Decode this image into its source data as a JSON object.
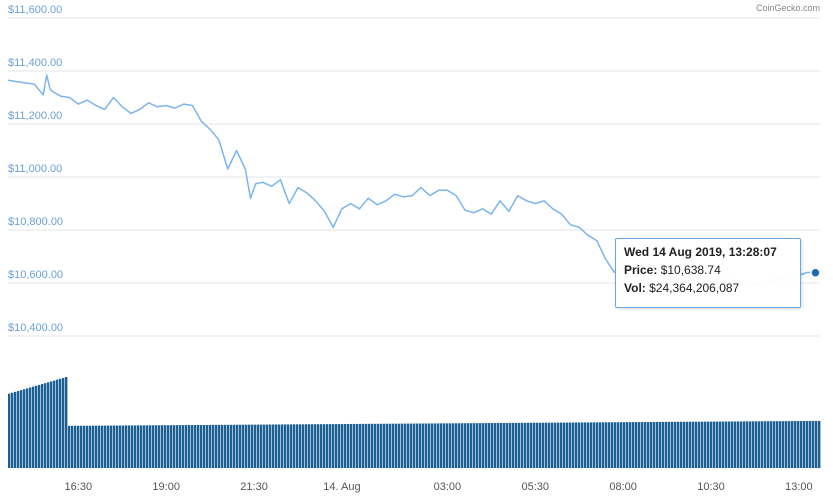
{
  "credit": "CoinGecko.com",
  "tooltip": {
    "date": "Wed 14 Aug 2019, 13:28:07",
    "price_label": "Price:",
    "price_value": "$10,638.74",
    "vol_label": "Vol:",
    "vol_value": "$24,364,206,087"
  },
  "colors": {
    "line": "#7cb5ec",
    "bar": "#1c5f93",
    "marker": "#1a6bb0",
    "axis_label": "#6b9fd6",
    "grid": "#e6e6e6"
  },
  "chart_data": [
    {
      "type": "line",
      "title": "",
      "ylabel": "",
      "ylim": [
        10400,
        11600
      ],
      "y_ticks": [
        "$10,400.00",
        "$10,600.00",
        "$10,800.00",
        "$11,000.00",
        "$11,200.00",
        "$11,400.00",
        "$11,600.00"
      ],
      "y_tick_values": [
        10400,
        10600,
        10800,
        11000,
        11200,
        11400,
        11600
      ],
      "x_ticks": [
        "16:30",
        "19:00",
        "21:30",
        "14. Aug",
        "03:00",
        "05:30",
        "08:00",
        "10:30",
        "13:00"
      ],
      "x_range_hours": [
        14.5,
        37.6
      ],
      "x_tick_hours": [
        16.5,
        19.0,
        21.5,
        24.0,
        27.0,
        29.5,
        32.0,
        34.5,
        37.0
      ],
      "series": [
        {
          "x_hours": [
            14.5,
            14.75,
            15.0,
            15.25,
            15.5,
            15.6,
            15.7,
            15.8,
            16.0,
            16.25,
            16.5,
            16.75,
            17.0,
            17.25,
            17.5,
            17.75,
            18.0,
            18.25,
            18.5,
            18.75,
            19.0,
            19.25,
            19.5,
            19.75,
            20.0,
            20.25,
            20.5,
            20.75,
            21.0,
            21.25,
            21.4,
            21.55,
            21.75,
            22.0,
            22.25,
            22.5,
            22.75,
            23.0,
            23.25,
            23.5,
            23.75,
            24.0,
            24.25,
            24.5,
            24.75,
            25.0,
            25.25,
            25.5,
            25.75,
            26.0,
            26.25,
            26.5,
            26.75,
            27.0,
            27.25,
            27.5,
            27.75,
            28.0,
            28.25,
            28.5,
            28.75,
            29.0,
            29.25,
            29.5,
            29.75,
            30.0,
            30.25,
            30.5,
            30.75,
            31.0,
            31.25,
            31.5,
            31.75,
            32.0,
            32.25,
            32.5,
            32.75,
            33.0,
            33.25,
            33.5,
            33.75,
            34.0,
            34.25,
            34.5,
            34.75,
            35.0,
            35.25,
            35.5,
            35.75,
            36.0,
            36.25,
            36.5,
            36.75,
            37.0,
            37.25,
            37.47
          ],
          "values": [
            11365,
            11360,
            11355,
            11350,
            11310,
            11385,
            11330,
            11320,
            11305,
            11300,
            11275,
            11290,
            11270,
            11255,
            11300,
            11265,
            11240,
            11255,
            11280,
            11265,
            11270,
            11260,
            11275,
            11270,
            11210,
            11180,
            11140,
            11030,
            11100,
            11030,
            10920,
            10975,
            10980,
            10965,
            10990,
            10900,
            10960,
            10940,
            10910,
            10870,
            10810,
            10880,
            10900,
            10880,
            10920,
            10895,
            10910,
            10935,
            10925,
            10930,
            10960,
            10930,
            10950,
            10950,
            10930,
            10875,
            10865,
            10880,
            10860,
            10910,
            10870,
            10930,
            10910,
            10900,
            10910,
            10880,
            10860,
            10820,
            10810,
            10780,
            10760,
            10690,
            10640,
            10660,
            10620,
            10640,
            10620,
            10630,
            10600,
            10610,
            10650,
            10640,
            10600,
            10620,
            10660,
            10630,
            10610,
            10600,
            10590,
            10600,
            10610,
            10620,
            10610,
            10630,
            10640,
            10638.74
          ]
        }
      ]
    },
    {
      "type": "bar",
      "title": "",
      "ylabel": "",
      "note": "volume",
      "x_range_hours": [
        14.5,
        37.6
      ],
      "segments": [
        {
          "x_from": 14.5,
          "x_to": 16.2,
          "v_from": 0.6,
          "v_to": 0.74
        },
        {
          "x_from": 16.2,
          "x_to": 37.6,
          "v_from": 0.34,
          "v_to": 0.38
        }
      ]
    }
  ]
}
